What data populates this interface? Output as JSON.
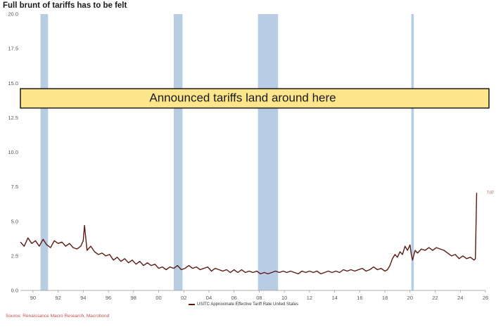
{
  "title": "Full brunt of tariffs has to be felt",
  "source": "Source: Renaissance Macro Research, Macrobond",
  "annotation": "Announced tariffs land around here",
  "end_label": "7.07",
  "colors": {
    "line": "#5c1a14",
    "recession": "#b8cde4",
    "annotation_fill": "#fde58c",
    "annotation_border": "#1a1a1a",
    "axis_text": "#555555"
  },
  "chart_data": {
    "type": "line",
    "title": "Full brunt of tariffs has to be felt",
    "xlabel": "",
    "ylabel": "",
    "xlim": [
      1989,
      2026
    ],
    "ylim": [
      0,
      20
    ],
    "x_tick_labels": [
      "90",
      "92",
      "94",
      "96",
      "98",
      "00",
      "02",
      "04",
      "06",
      "08",
      "10",
      "12",
      "14",
      "16",
      "18",
      "20",
      "22",
      "24",
      "26"
    ],
    "x_tick_values": [
      1990,
      1992,
      1994,
      1996,
      1998,
      2000,
      2002,
      2004,
      2006,
      2008,
      2010,
      2012,
      2014,
      2016,
      2018,
      2020,
      2022,
      2024,
      2026
    ],
    "y_tick_labels": [
      "0.0",
      "2.5",
      "5.0",
      "7.5",
      "10.0",
      "12.5",
      "15.0",
      "17.5",
      "20.0"
    ],
    "y_tick_values": [
      0,
      2.5,
      5,
      7.5,
      10,
      12.5,
      15,
      17.5,
      20
    ],
    "recessions": [
      [
        1990.6,
        1991.2
      ],
      [
        2001.2,
        2001.9
      ],
      [
        2007.9,
        2009.5
      ],
      [
        2020.1,
        2020.3
      ]
    ],
    "annotation_band": [
      13.2,
      14.6
    ],
    "legend": "USITC Approximate Effective Tariff Rate United States",
    "series": [
      {
        "name": "USITC Approximate Effective Tariff Rate United States",
        "x": [
          1989.0,
          1989.3,
          1989.6,
          1989.9,
          1990.2,
          1990.5,
          1990.8,
          1991.1,
          1991.4,
          1991.7,
          1992.0,
          1992.3,
          1992.6,
          1992.9,
          1993.2,
          1993.5,
          1993.8,
          1994.0,
          1994.1,
          1994.3,
          1994.6,
          1994.9,
          1995.2,
          1995.5,
          1995.8,
          1996.1,
          1996.4,
          1996.7,
          1997.0,
          1997.3,
          1997.6,
          1997.9,
          1998.2,
          1998.5,
          1998.8,
          1999.1,
          1999.4,
          1999.7,
          2000.0,
          2000.3,
          2000.6,
          2000.9,
          2001.2,
          2001.5,
          2001.8,
          2002.1,
          2002.4,
          2002.7,
          2003.0,
          2003.3,
          2003.6,
          2003.9,
          2004.2,
          2004.5,
          2004.8,
          2005.1,
          2005.4,
          2005.7,
          2006.0,
          2006.3,
          2006.6,
          2006.9,
          2007.2,
          2007.5,
          2007.8,
          2008.1,
          2008.4,
          2008.7,
          2009.0,
          2009.3,
          2009.6,
          2009.9,
          2010.2,
          2010.5,
          2010.8,
          2011.1,
          2011.4,
          2011.7,
          2012.0,
          2012.3,
          2012.6,
          2012.9,
          2013.2,
          2013.5,
          2013.8,
          2014.1,
          2014.4,
          2014.7,
          2015.0,
          2015.3,
          2015.6,
          2015.9,
          2016.2,
          2016.5,
          2016.8,
          2017.1,
          2017.4,
          2017.7,
          2018.0,
          2018.2,
          2018.4,
          2018.6,
          2018.8,
          2019.0,
          2019.2,
          2019.4,
          2019.6,
          2019.8,
          2020.0,
          2020.1,
          2020.2,
          2020.4,
          2020.6,
          2020.9,
          2021.2,
          2021.5,
          2021.8,
          2022.1,
          2022.4,
          2022.7,
          2023.0,
          2023.3,
          2023.6,
          2023.9,
          2024.2,
          2024.5,
          2024.8,
          2025.1,
          2025.2,
          2025.3
        ],
        "y": [
          3.5,
          3.2,
          3.8,
          3.4,
          3.6,
          3.2,
          3.7,
          3.3,
          3.1,
          3.6,
          3.4,
          3.5,
          3.2,
          3.4,
          3.1,
          3.0,
          3.2,
          3.6,
          4.7,
          2.9,
          3.2,
          2.8,
          2.6,
          2.7,
          2.5,
          2.6,
          2.2,
          2.4,
          2.1,
          2.3,
          2.0,
          2.2,
          1.9,
          2.1,
          1.8,
          2.0,
          1.8,
          1.9,
          1.6,
          1.7,
          1.5,
          1.7,
          1.6,
          1.8,
          1.5,
          1.6,
          1.8,
          1.6,
          1.7,
          1.5,
          1.6,
          1.7,
          1.4,
          1.6,
          1.5,
          1.4,
          1.5,
          1.3,
          1.5,
          1.3,
          1.5,
          1.3,
          1.4,
          1.3,
          1.4,
          1.2,
          1.3,
          1.2,
          1.3,
          1.4,
          1.3,
          1.4,
          1.3,
          1.4,
          1.3,
          1.2,
          1.4,
          1.3,
          1.4,
          1.3,
          1.4,
          1.2,
          1.3,
          1.4,
          1.3,
          1.4,
          1.3,
          1.5,
          1.4,
          1.5,
          1.4,
          1.5,
          1.6,
          1.4,
          1.5,
          1.7,
          1.5,
          1.6,
          1.4,
          1.5,
          1.8,
          2.3,
          2.6,
          2.4,
          2.8,
          2.6,
          3.2,
          2.9,
          3.3,
          2.6,
          2.2,
          2.9,
          2.7,
          3.0,
          2.9,
          3.1,
          2.9,
          3.1,
          3.0,
          2.9,
          2.7,
          2.5,
          2.6,
          2.3,
          2.5,
          2.3,
          2.4,
          2.2,
          2.3,
          7.07
        ]
      }
    ]
  }
}
